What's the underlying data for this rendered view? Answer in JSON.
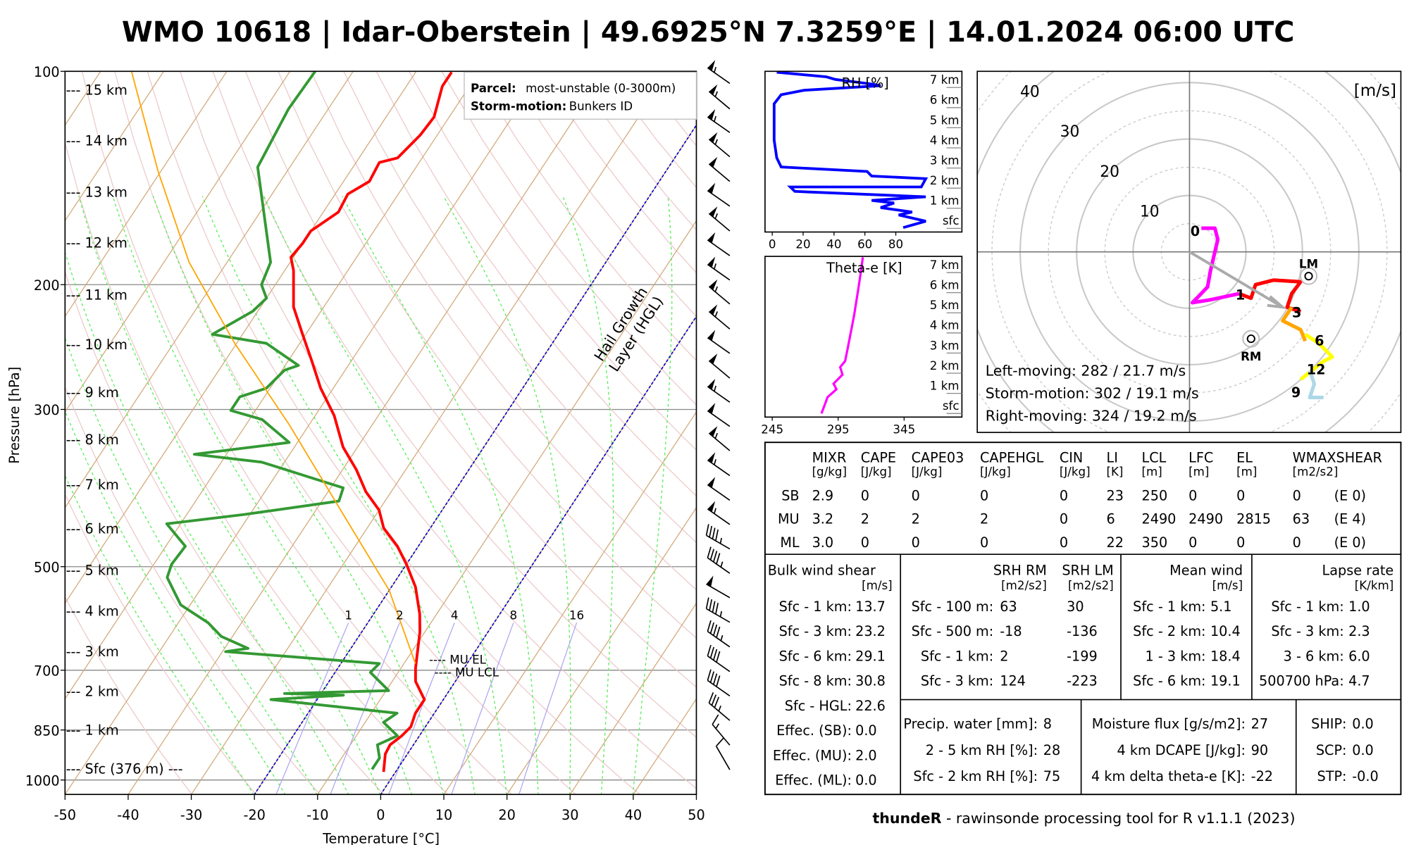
{
  "title": "WMO 10618 | Idar-Oberstein | 49.6925°N 7.3259°E | 14.01.2024 06:00 UTC",
  "skewt": {
    "ylabel": "Pressure [hPa]",
    "xlabel": "Temperature [°C]",
    "pressure_ticks": [
      "100",
      "200",
      "300",
      "500",
      "700",
      "850",
      "1000"
    ],
    "temp_ticks": [
      "-50",
      "-40",
      "-30",
      "-20",
      "-10",
      "0",
      "10",
      "20",
      "30",
      "40",
      "50"
    ],
    "height_labels": [
      "--- 15 km",
      "--- 14 km",
      "--- 13 km",
      "--- 12 km",
      "--- 11 km",
      "--- 10 km",
      "--- 9 km",
      "--- 8 km",
      "--- 7 km",
      "--- 6 km",
      "--- 5 km",
      "--- 4 km",
      "--- 3 km",
      "--- 2 km",
      "--- 1 km",
      "--- Sfc (376 m) ---"
    ],
    "legend": {
      "parcel_label": "Parcel:",
      "parcel_value": "most-unstable (0-3000m)",
      "storm_label": "Storm-motion:",
      "storm_value": "Bunkers ID"
    },
    "mu_el": "---- MU EL",
    "mu_lcl": "---- MU LCL",
    "hgl_1": "Hail Growth",
    "hgl_2": "Layer (HGL)",
    "mixing_ratio_labels": [
      "1",
      "2",
      "4",
      "8",
      "16"
    ]
  },
  "chart_data": [
    {
      "type": "line",
      "title": "Skew-T log-P",
      "xlabel": "Temperature [°C]",
      "ylabel": "Pressure [hPa]",
      "xlim": [
        -50,
        50
      ],
      "ylim": [
        1050,
        100
      ],
      "series": [
        {
          "name": "temperature",
          "color": "#ff0000",
          "p": [
            974,
            919,
            892,
            866,
            841,
            805,
            770,
            726,
            695,
            618,
            583,
            534,
            496,
            468,
            441,
            416,
            392,
            365,
            339,
            306,
            280,
            256,
            235,
            215,
            191,
            183,
            175,
            168,
            158,
            149,
            143,
            134.5,
            132.5,
            123,
            116,
            105,
            100.3
          ],
          "t": [
            -1.9,
            -3.5,
            -3.7,
            -2.8,
            -2.3,
            -3.0,
            -3.0,
            -6.3,
            -7.7,
            -10.8,
            -12.7,
            -16.2,
            -20.0,
            -23.3,
            -27.4,
            -30.0,
            -34.0,
            -37.8,
            -42.3,
            -47.0,
            -52.0,
            -56.3,
            -60.5,
            -64.8,
            -68.6,
            -70.4,
            -70.0,
            -70.0,
            -67.6,
            -68.0,
            -65.9,
            -66.3,
            -63.9,
            -62.7,
            -62.4,
            -64.3,
            -64.3
          ]
        },
        {
          "name": "dewpoint",
          "color": "#339933",
          "p": [
            966,
            931,
            892,
            866,
            829,
            805,
            770,
            759,
            755,
            748,
            705,
            685,
            659,
            652,
            627,
            600,
            566,
            518,
            496,
            468,
            435,
            422,
            404,
            387,
            356,
            347,
            334,
            310,
            301,
            288,
            280,
            264,
            260,
            242,
            235,
            218,
            209,
            200,
            186,
            136.5,
            113,
            100
          ],
          "t": [
            -4.0,
            -4.0,
            -5.7,
            -3.5,
            -7.1,
            -5.9,
            -27.3,
            -16.3,
            -25.8,
            -9.6,
            -14.4,
            -13.9,
            -39.5,
            -36.3,
            -41.8,
            -45.3,
            -51.5,
            -56.5,
            -57.2,
            -56.9,
            -62.2,
            -50.9,
            -37.3,
            -38.0,
            -53.6,
            -65.1,
            -51.3,
            -58.0,
            -63.9,
            -63.9,
            -60.6,
            -59.6,
            -57.9,
            -65.3,
            -74.8,
            -70.8,
            -70.0,
            -72.2,
            -73.1,
            -85.1,
            -86.3,
            -86.0
          ]
        },
        {
          "name": "parcel (most-unstable)",
          "color": "#ffa500",
          "p": [
            685,
            540,
            422,
            315,
            242,
            186,
            138.5,
            100
          ],
          "t": [
            -8.2,
            -20.0,
            -35.2,
            -53.2,
            -70.3,
            -86.0,
            -100.4,
            -115.1
          ]
        }
      ],
      "hail_growth_isotherms": [
        0,
        -20
      ],
      "mixing_ratios_gkg": [
        1,
        2,
        4,
        8,
        16
      ],
      "levels_hpa": {
        "mu_lcl": 695,
        "mu_el": 675
      },
      "wind_barbs": {
        "unit": "kt",
        "p": [
          104,
          113,
          122,
          132,
          143,
          155,
          168,
          182,
          197,
          213,
          231,
          250,
          271,
          293,
          317,
          343,
          372,
          403,
          436,
          472,
          511,
          553,
          599,
          649,
          703,
          761,
          824,
          893,
          967
        ],
        "dir": [
          305,
          310,
          305,
          310,
          310,
          305,
          310,
          305,
          305,
          310,
          310,
          305,
          310,
          305,
          305,
          310,
          305,
          305,
          305,
          300,
          305,
          300,
          300,
          305,
          305,
          305,
          310,
          320,
          330
        ],
        "spd": [
          55,
          55,
          55,
          55,
          50,
          50,
          55,
          50,
          55,
          55,
          55,
          50,
          50,
          55,
          50,
          55,
          55,
          50,
          55,
          45,
          45,
          50,
          45,
          45,
          40,
          40,
          35,
          15,
          10
        ]
      }
    },
    {
      "type": "line",
      "title": "RH [%]",
      "xlim": [
        0,
        100
      ],
      "ylim_km": [
        0,
        7.8
      ],
      "x_ticks": [
        "0",
        "20",
        "40",
        "60",
        "80"
      ],
      "y_ticks": [
        "sfc",
        "1 km",
        "2 km",
        "3 km",
        "4 km",
        "5 km",
        "6 km",
        "7 km"
      ],
      "series": [
        {
          "name": "RH",
          "color": "#0000ff",
          "rh": [
            84.8,
            99.4,
            81.9,
            90.6,
            70.2,
            78.9,
            64.3,
            99.4,
            14.6,
            11.7,
            96.5,
            99.4,
            64.3,
            61.4,
            5.8,
            2.9,
            1.2,
            1.2,
            5.8,
            20.5,
            70.2,
            64.3,
            40.9,
            35.1,
            2.9
          ],
          "h_km": [
            0.04,
            0.36,
            0.67,
            0.81,
            1.03,
            1.26,
            1.39,
            1.57,
            1.84,
            2.06,
            2.06,
            2.47,
            2.6,
            2.83,
            3.05,
            3.5,
            4.39,
            6.19,
            6.64,
            6.86,
            7.09,
            7.17,
            7.4,
            7.53,
            7.76
          ]
        }
      ]
    },
    {
      "type": "line",
      "title": "Theta-e [K]",
      "xlim": [
        245,
        390
      ],
      "ylim_km": [
        0,
        7.8
      ],
      "x_ticks": [
        "245",
        "295",
        "345"
      ],
      "y_ticks": [
        "sfc",
        "1 km",
        "2 km",
        "3 km",
        "4 km",
        "5 km",
        "6 km",
        "7 km"
      ],
      "series": [
        {
          "name": "theta-e",
          "color": "#ff00ff",
          "thetae": [
            282.3,
            287.0,
            293.7,
            291.5,
            298.3,
            296.5,
            300.3,
            302.3,
            307.0,
            310.3,
            312.3,
            313.7
          ],
          "h_km": [
            0.0,
            0.81,
            1.2,
            1.48,
            1.93,
            2.3,
            2.6,
            3.27,
            4.84,
            6.19,
            7.09,
            7.76
          ]
        }
      ]
    },
    {
      "type": "line",
      "title": "Hodograph",
      "unit": "[m/s]",
      "rings": [
        10,
        20,
        30,
        40
      ],
      "ring_labels": [
        "10",
        "20",
        "30",
        "40"
      ],
      "segments": [
        {
          "label": "0",
          "color": "#ff00ff",
          "u": [
            2.1,
            4.5,
            5.0,
            3.7,
            3.2,
            1.3,
            0.5,
            3.7,
            8.8
          ],
          "v": [
            4.2,
            4.2,
            2.2,
            -3.4,
            -6.2,
            -8.2,
            -9.0,
            -8.5,
            -7.4
          ]
        },
        {
          "label": "1",
          "color": "#ff0000",
          "u": [
            8.8,
            10.9,
            11.7,
            14.9,
            19.7,
            18.1,
            17.3,
            19.7
          ],
          "v": [
            -7.4,
            -8.2,
            -5.8,
            -5.0,
            -5.3,
            -7.4,
            -9.8,
            -10.6
          ]
        },
        {
          "label": "3",
          "color": "#ffa500",
          "u": [
            18.1,
            16.5,
            19.7,
            20.5
          ],
          "v": [
            -9.8,
            -12.2,
            -13.8,
            -15.8
          ]
        },
        {
          "label": "6",
          "color": "#ffff00",
          "u": [
            20.5,
            22.9,
            25.3,
            23.7,
            19.7
          ],
          "v": [
            -14.6,
            -16.2,
            -18.6,
            -19.4,
            -22.6
          ]
        },
        {
          "label": "9",
          "color": "#add8e6",
          "u": [
            21.3,
            22.1,
            21.3,
            23.7
          ],
          "v": [
            -21.0,
            -23.4,
            -25.8,
            -25.8
          ]
        }
      ],
      "height_labels": [
        "0",
        "1",
        "3",
        "6",
        "9",
        "12"
      ],
      "height_label_uv": [
        [
          1.0,
          3.8
        ],
        [
          9.0,
          -7.5
        ],
        [
          19.0,
          -10.6
        ],
        [
          23.0,
          -15.6
        ],
        [
          19.5,
          -23.5
        ],
        [
          20.5,
          -22.0
        ]
      ],
      "lm": {
        "label": "LM",
        "u": 21.1,
        "v": -4.3
      },
      "rm": {
        "label": "RM",
        "u": 10.9,
        "v": -15.4
      },
      "storm_motion": {
        "u": 16.5,
        "v": -9.8
      },
      "text": [
        "Left-moving: 282 / 21.7 m/s",
        "Storm-motion: 302 / 19.1 m/s",
        "Right-moving: 324 / 19.2 m/s"
      ]
    }
  ],
  "params": {
    "headers": [
      "MIXR",
      "CAPE",
      "CAPE03",
      "CAPEHGL",
      "CIN",
      "LI",
      "LCL",
      "LFC",
      "EL",
      "WMAXSHEAR"
    ],
    "units": [
      "[g/kg]",
      "[J/kg]",
      "[J/kg]",
      "[J/kg]",
      "[J/kg]",
      "[K]",
      "[m]",
      "[m]",
      "[m]",
      "[m2/s2]"
    ],
    "rows": [
      {
        "name": "SB",
        "values": [
          "2.9",
          "0",
          "0",
          "0",
          "0",
          "23",
          "250",
          "0",
          "0",
          "0"
        ],
        "extra": "(E 0)"
      },
      {
        "name": "MU",
        "values": [
          "3.2",
          "2",
          "2",
          "2",
          "0",
          "6",
          "2490",
          "2490",
          "2815",
          "63"
        ],
        "extra": "(E 4)"
      },
      {
        "name": "ML",
        "values": [
          "3.0",
          "0",
          "0",
          "0",
          "0",
          "22",
          "350",
          "0",
          "0",
          "0"
        ],
        "extra": "(E 0)"
      }
    ]
  },
  "bulk": {
    "title": "Bulk wind shear",
    "unit": "[m/s]",
    "rows": [
      [
        "Sfc - 1 km:",
        "13.7"
      ],
      [
        "Sfc - 3 km:",
        "23.2"
      ],
      [
        "Sfc - 6 km:",
        "29.1"
      ],
      [
        "Sfc - 8 km:",
        "30.8"
      ],
      [
        "Sfc - HGL:",
        "22.6"
      ],
      [
        "Effec. (SB):",
        "0.0"
      ],
      [
        "Effec. (MU):",
        "2.0"
      ],
      [
        "Effec. (ML):",
        "0.0"
      ]
    ]
  },
  "srh": {
    "rm_title": "SRH RM",
    "lm_title": "SRH LM",
    "unit": "[m2/s2]",
    "rows": [
      [
        "Sfc - 100 m:",
        "63",
        "30"
      ],
      [
        "Sfc - 500 m:",
        "-18",
        "-136"
      ],
      [
        "Sfc - 1 km:",
        "2",
        "-199"
      ],
      [
        "Sfc - 3 km:",
        "124",
        "-223"
      ]
    ]
  },
  "mean_wind": {
    "title": "Mean wind",
    "unit": "[m/s]",
    "rows": [
      [
        "Sfc - 1 km:",
        "5.1"
      ],
      [
        "Sfc - 2 km:",
        "10.4"
      ],
      [
        "1 - 3 km:",
        "18.4"
      ],
      [
        "Sfc - 6 km:",
        "19.1"
      ]
    ]
  },
  "lapse": {
    "title": "Lapse rate",
    "unit": "[K/km]",
    "rows": [
      [
        "Sfc - 1 km:",
        "1.0"
      ],
      [
        "Sfc - 3 km:",
        "2.3"
      ],
      [
        "3 - 6 km:",
        "6.0"
      ],
      [
        "500700 hPa:",
        "4.7"
      ]
    ]
  },
  "moisture": {
    "rows": [
      [
        "Precip. water [mm]:",
        "8"
      ],
      [
        "2 - 5 km RH [%]:",
        "28"
      ],
      [
        "Sfc - 2 km RH [%]:",
        "75"
      ]
    ]
  },
  "flux": {
    "rows": [
      [
        "Moisture flux [g/s/m2]:",
        "27"
      ],
      [
        "4 km DCAPE [J/kg]:",
        "90"
      ],
      [
        "4 km delta theta-e [K]:",
        "-22"
      ]
    ]
  },
  "composite": {
    "rows": [
      [
        "SHIP:",
        "0.0"
      ],
      [
        "SCP:",
        "0.0"
      ],
      [
        "STP:",
        "-0.0"
      ]
    ]
  },
  "footer": {
    "bold": "thundeR",
    "rest": " - rawinsonde processing tool for R v1.1.1 (2023)"
  }
}
